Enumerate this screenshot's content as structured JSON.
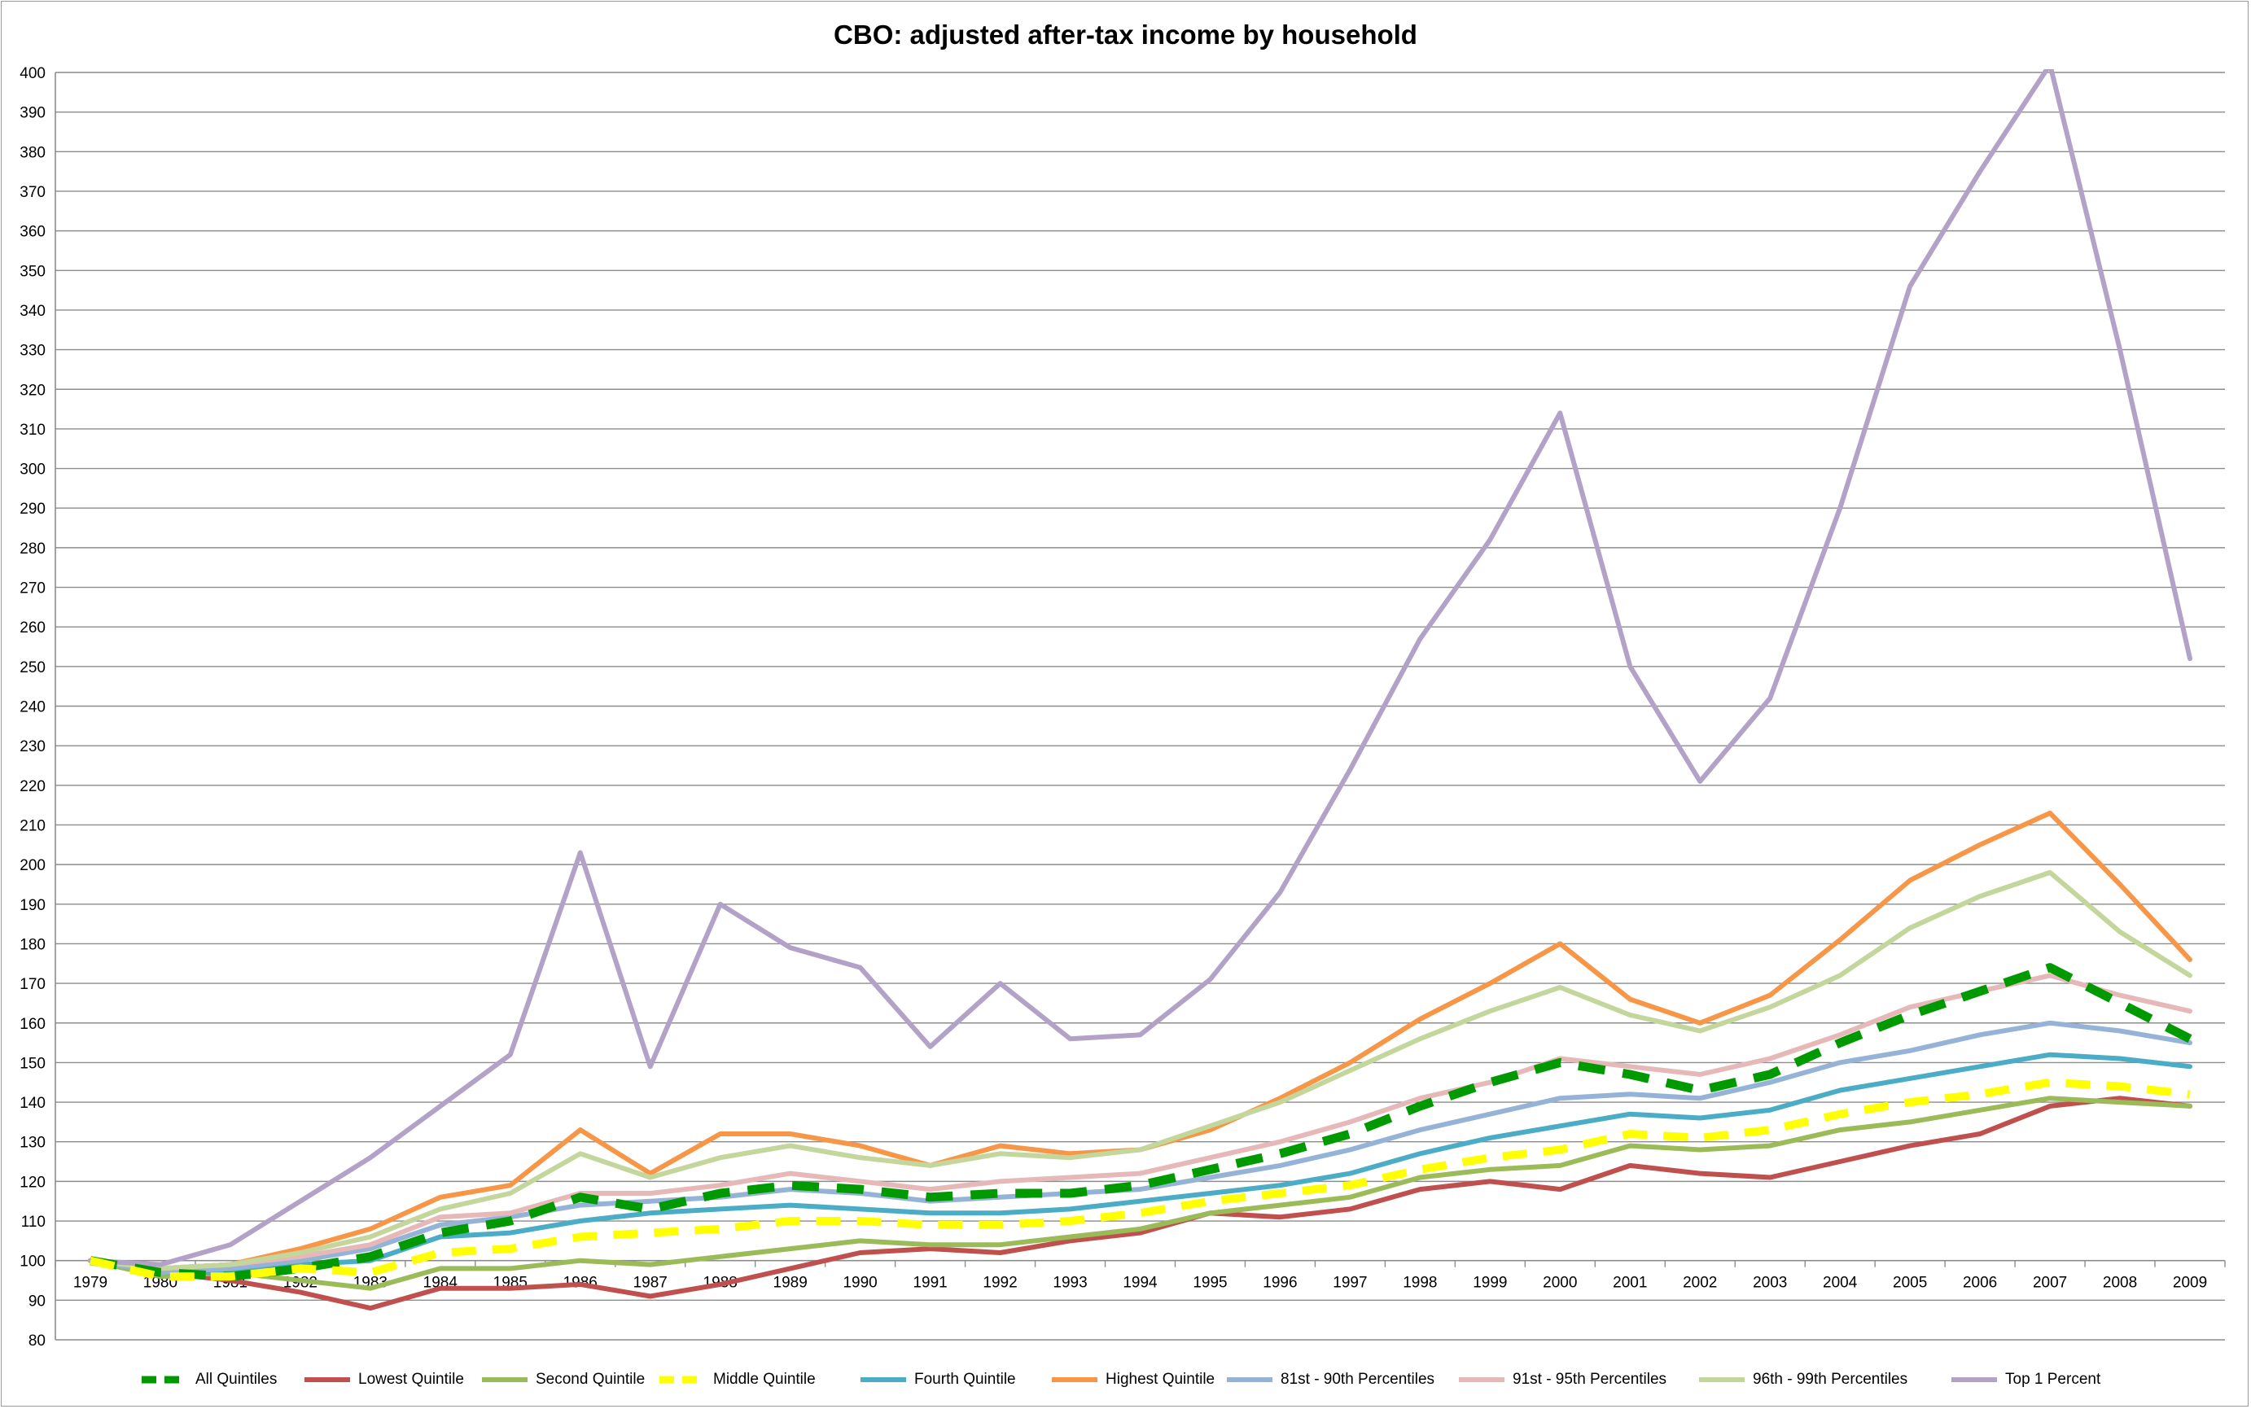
{
  "chart_data": {
    "type": "line",
    "title": "CBO: adjusted after-tax income by household",
    "xlabel": "",
    "ylabel": "",
    "ylim": [
      80,
      400
    ],
    "ytick_step": 10,
    "grid": true,
    "legend_position": "bottom",
    "x": [
      "1979",
      "1980",
      "1981",
      "1982",
      "1983",
      "1984",
      "1985",
      "1986",
      "1987",
      "1988",
      "1989",
      "1990",
      "1991",
      "1992",
      "1993",
      "1994",
      "1995",
      "1996",
      "1997",
      "1998",
      "1999",
      "2000",
      "2001",
      "2002",
      "2003",
      "2004",
      "2005",
      "2006",
      "2007",
      "2008",
      "2009"
    ],
    "series": [
      {
        "name": "All Quintiles",
        "color": "#009a00",
        "dash": "dashed",
        "width": 11,
        "values": [
          100,
          97,
          96,
          98,
          101,
          107,
          110,
          116,
          113,
          117,
          119,
          118,
          116,
          117,
          117,
          119,
          123,
          127,
          132,
          139,
          145,
          150,
          147,
          143,
          147,
          155,
          162,
          168,
          174,
          165,
          156
        ]
      },
      {
        "name": "Lowest Quintile",
        "color": "#c0504d",
        "dash": "solid",
        "width": 6,
        "values": [
          100,
          97,
          95,
          92,
          88,
          93,
          93,
          94,
          91,
          94,
          98,
          102,
          103,
          102,
          105,
          107,
          112,
          111,
          113,
          118,
          120,
          118,
          124,
          122,
          121,
          125,
          129,
          132,
          139,
          141,
          139
        ]
      },
      {
        "name": "Second Quintile",
        "color": "#9bbb59",
        "dash": "solid",
        "width": 6,
        "values": [
          100,
          96,
          97,
          95,
          93,
          98,
          98,
          100,
          99,
          101,
          103,
          105,
          104,
          104,
          106,
          108,
          112,
          114,
          116,
          121,
          123,
          124,
          129,
          128,
          129,
          133,
          135,
          138,
          141,
          140,
          139
        ]
      },
      {
        "name": "Middle Quintile",
        "color": "#ffff00",
        "dash": "dashed",
        "width": 10,
        "values": [
          100,
          96,
          96,
          98,
          97,
          102,
          103,
          106,
          107,
          108,
          110,
          110,
          109,
          109,
          110,
          112,
          115,
          117,
          119,
          123,
          126,
          128,
          132,
          131,
          133,
          137,
          140,
          142,
          145,
          144,
          142
        ]
      },
      {
        "name": "Fourth Quintile",
        "color": "#4bacc6",
        "dash": "solid",
        "width": 6,
        "values": [
          100,
          97,
          97,
          99,
          100,
          106,
          107,
          110,
          112,
          113,
          114,
          113,
          112,
          112,
          113,
          115,
          117,
          119,
          122,
          127,
          131,
          134,
          137,
          136,
          138,
          143,
          146,
          149,
          152,
          151,
          149
        ]
      },
      {
        "name": "Highest Quintile",
        "color": "#f79646",
        "dash": "solid",
        "width": 6,
        "values": [
          100,
          98,
          99,
          103,
          108,
          116,
          119,
          133,
          122,
          132,
          132,
          129,
          124,
          129,
          127,
          128,
          133,
          141,
          150,
          161,
          170,
          180,
          166,
          160,
          167,
          181,
          196,
          205,
          213,
          195,
          176
        ]
      },
      {
        "name": "81st - 90th  Percentiles",
        "color": "#95b3d7",
        "dash": "solid",
        "width": 6,
        "values": [
          100,
          97,
          98,
          100,
          103,
          109,
          111,
          114,
          115,
          116,
          118,
          117,
          115,
          116,
          117,
          118,
          121,
          124,
          128,
          133,
          137,
          141,
          142,
          141,
          145,
          150,
          153,
          157,
          160,
          158,
          155
        ]
      },
      {
        "name": "91st - 95th Percentiles",
        "color": "#e6b9b8",
        "dash": "solid",
        "width": 6,
        "values": [
          100,
          98,
          99,
          101,
          104,
          111,
          112,
          117,
          117,
          119,
          122,
          120,
          118,
          120,
          121,
          122,
          126,
          130,
          135,
          141,
          145,
          151,
          149,
          147,
          151,
          157,
          164,
          168,
          172,
          167,
          163
        ]
      },
      {
        "name": "96th - 99th Percentiles",
        "color": "#c3d69b",
        "dash": "solid",
        "width": 6,
        "values": [
          100,
          98,
          99,
          102,
          106,
          113,
          117,
          127,
          121,
          126,
          129,
          126,
          124,
          127,
          126,
          128,
          134,
          140,
          148,
          156,
          163,
          169,
          162,
          158,
          164,
          172,
          184,
          192,
          198,
          183,
          172
        ]
      },
      {
        "name": "Top 1 Percent",
        "color": "#b3a2c7",
        "dash": "solid",
        "width": 6,
        "values": [
          100,
          99,
          104,
          115,
          126,
          139,
          152,
          203,
          149,
          190,
          179,
          174,
          154,
          170,
          156,
          157,
          171,
          193,
          224,
          257,
          282,
          314,
          250,
          221,
          242,
          290,
          346,
          375,
          402,
          330,
          252
        ]
      }
    ]
  }
}
